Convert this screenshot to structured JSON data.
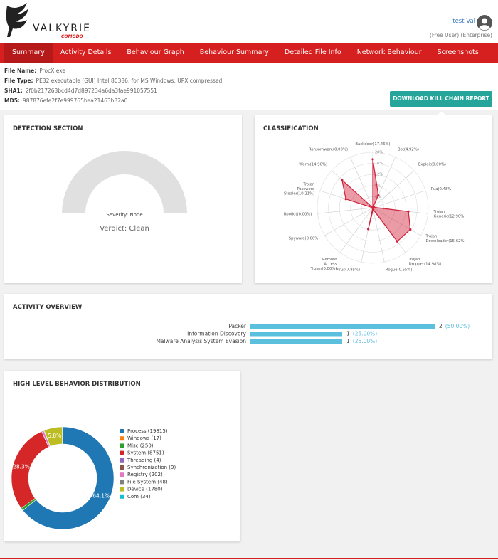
{
  "header": {
    "brand": "VALKYRIE",
    "sub_brand": "COMODO",
    "user_name": "test Val",
    "user_plan": "(Free User) (Enterprise)"
  },
  "nav": {
    "tabs": [
      "Summary",
      "Activity Details",
      "Behaviour Graph",
      "Behaviour Summary",
      "Detailed File Info",
      "Network Behaviour",
      "Screenshots"
    ],
    "active": 0
  },
  "file_info": {
    "rows": [
      {
        "label": "File Name:",
        "value": "ProcX.exe"
      },
      {
        "label": "File Type:",
        "value": "PE32 executable (GUI) Intel 80386, for MS Windows, UPX compressed"
      },
      {
        "label": "SHA1:",
        "value": "2f0b217263bcd4d7d897234a6da3fae991057551"
      },
      {
        "label": "MD5:",
        "value": "987876efe2f7e999765bea21463b32a0"
      }
    ]
  },
  "download_button": "DOWNLOAD KILL CHAIN REPORT",
  "detection": {
    "title": "DETECTION SECTION",
    "severity": "Severity: None",
    "verdict": "Verdict: Clean"
  },
  "chart_data": [
    {
      "type": "radar",
      "title": "CLASSIFICATION",
      "categories": [
        [
          "Backdoor(17.46%)"
        ],
        [
          "Bot(4.92%)"
        ],
        [
          "Exploit(0.00%)"
        ],
        [
          "Pua(0.48%)"
        ],
        [
          "Trojan",
          "Generic(12.90%)"
        ],
        [
          "Trojan",
          "Downloader(15.62%)"
        ],
        [
          "Trojan",
          "Dropper(14.98%)"
        ],
        [
          "Rogue(0.65%)"
        ],
        [
          "Virus(7.85%)"
        ],
        [
          "Remote",
          "Access",
          "Trojan(0.00%)"
        ],
        [
          "Spyware(0.00%)"
        ],
        [
          "Rootkit(0.00%)"
        ],
        [
          "Trojan",
          "Password",
          "Stealer(10.21%)"
        ],
        [
          "Worm(14.90%)"
        ],
        [
          "Ransomware(0.00%)"
        ]
      ],
      "values": [
        17.46,
        4.92,
        0,
        0.48,
        12.9,
        15.62,
        14.98,
        0.65,
        7.85,
        0,
        0,
        0,
        10.21,
        14.9,
        0
      ],
      "color": "#d0213a",
      "rlim": [
        0,
        20
      ],
      "rticks": [
        {
          "value": 4,
          "label": "4%"
        },
        {
          "value": 8,
          "label": "8%"
        },
        {
          "value": 12,
          "label": "12%"
        },
        {
          "value": 16,
          "label": "16%"
        },
        {
          "value": 20,
          "label": "20%"
        }
      ],
      "grid": true
    },
    {
      "type": "hbar",
      "title": "ACTIVITY OVERVIEW",
      "categories": [
        "Packer",
        "Information Discovery",
        "Malware Analysis System Evasion"
      ],
      "values": [
        2,
        1,
        1
      ],
      "percentage_labels": [
        "(50.00%)",
        "(25.00%)",
        "(25.00%)"
      ],
      "color": "#5bc0de",
      "xlim": [
        0,
        2
      ]
    },
    {
      "type": "donut",
      "title": "HIGH LEVEL BEHAVIOR DISTRIBUTION",
      "categories": [
        "Process (19815)",
        "Windows (17)",
        "Misc (250)",
        "System (8751)",
        "Threading (4)",
        "Synchronization (9)",
        "Registry (202)",
        "File System (48)",
        "Device (1780)",
        "Com (34)"
      ],
      "values": [
        19815,
        17,
        250,
        8751,
        4,
        9,
        202,
        48,
        1780,
        34
      ],
      "value_labels": [
        "64.1%",
        null,
        null,
        "28.3%",
        null,
        null,
        null,
        null,
        "5.8%",
        null
      ],
      "colors": [
        "#1f77b4",
        "#ff7f0e",
        "#2ca02c",
        "#d62728",
        "#9467bd",
        "#8c564b",
        "#e377c2",
        "#7f7f7f",
        "#bcbd22",
        "#17becf"
      ]
    }
  ]
}
